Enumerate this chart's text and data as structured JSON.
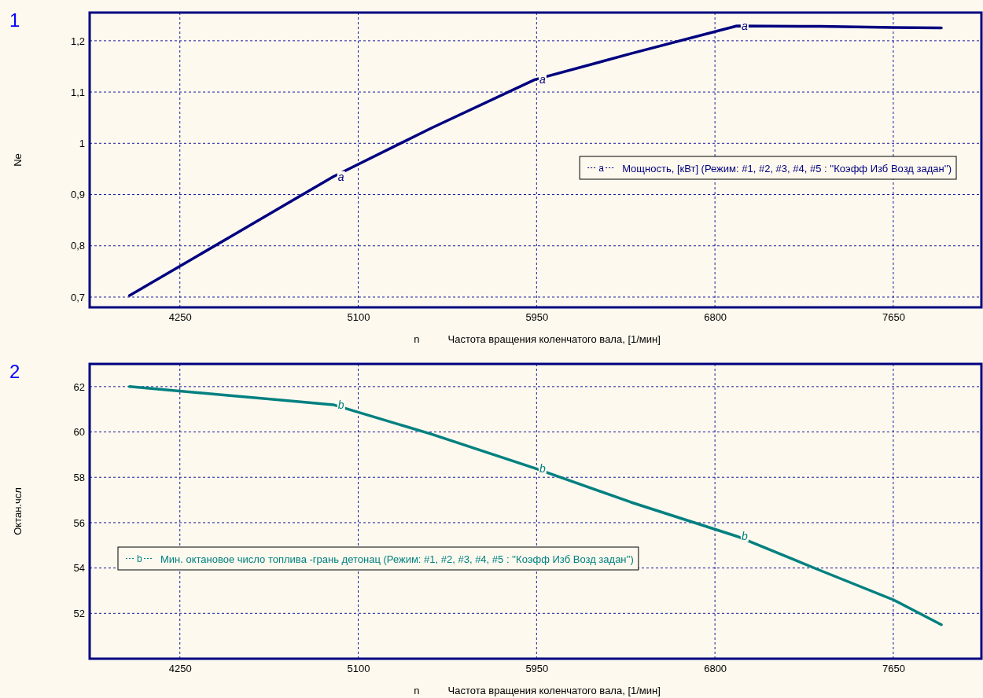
{
  "chart_data": [
    {
      "type": "line",
      "title": "1",
      "xlabel": "n          Частота вращения коленчатого вала, [1/мин]",
      "ylabel": "Ne",
      "xlim": [
        3820,
        8070
      ],
      "xticks": [
        4250,
        5100,
        5950,
        6800,
        7650
      ],
      "ylim": [
        0.68,
        1.255
      ],
      "yticks": [
        {
          "value": 0.7,
          "label": "0,7"
        },
        {
          "value": 0.8,
          "label": "0,8"
        },
        {
          "value": 0.9,
          "label": "0,9"
        },
        {
          "value": 1,
          "label": "1"
        },
        {
          "value": 1.1,
          "label": "1,1"
        },
        {
          "value": 1.2,
          "label": "1,2"
        }
      ],
      "grid": true,
      "legend": "right",
      "marker": "none",
      "line_style": "solid",
      "series": [
        {
          "name": "Мощность, [кВт] (Режим: #1, #2, #3, #4, #5 : ''Коэфф Изб Возд задан'')",
          "color": "#000080",
          "x": [
            4010,
            4500,
            4981,
            5450,
            5941,
            6400,
            6904,
            7300,
            7650,
            7879
          ],
          "values": [
            0.703,
            0.82,
            0.935,
            1.03,
            1.124,
            1.175,
            1.229,
            1.228,
            1.226,
            1.225
          ]
        }
      ],
      "annotations": [
        {
          "text": "a",
          "x": 4981,
          "y": 0.935
        },
        {
          "text": "a",
          "x": 5941,
          "y": 1.124
        },
        {
          "text": "a",
          "x": 6904,
          "y": 1.229
        }
      ]
    },
    {
      "type": "line",
      "title": "2",
      "xlabel": "n          Частота вращения коленчатого вала, [1/мин]",
      "ylabel": "Октан.чсл",
      "xlim": [
        3820,
        8070
      ],
      "xticks": [
        4250,
        5100,
        5950,
        6800,
        7650
      ],
      "ylim": [
        50,
        63
      ],
      "yticks": [
        52,
        54,
        56,
        58,
        60,
        62
      ],
      "grid": true,
      "legend": "left",
      "marker": "none",
      "line_style": "solid",
      "series": [
        {
          "name": "Мин. октановое число топлива -грань детонац (Режим: #1, #2, #3, #4, #5 : ''Коэфф Изб Возд задан'')",
          "color": "#008080",
          "x": [
            4010,
            4500,
            4981,
            5450,
            5941,
            6400,
            6904,
            7300,
            7650,
            7879
          ],
          "values": [
            62.0,
            61.6,
            61.2,
            59.9,
            58.4,
            56.9,
            55.4,
            53.9,
            52.6,
            51.5
          ]
        }
      ],
      "annotations": [
        {
          "text": "b",
          "x": 4981,
          "y": 61.2
        },
        {
          "text": "b",
          "x": 5941,
          "y": 58.4
        },
        {
          "text": "b",
          "x": 6904,
          "y": 55.4
        }
      ]
    }
  ]
}
